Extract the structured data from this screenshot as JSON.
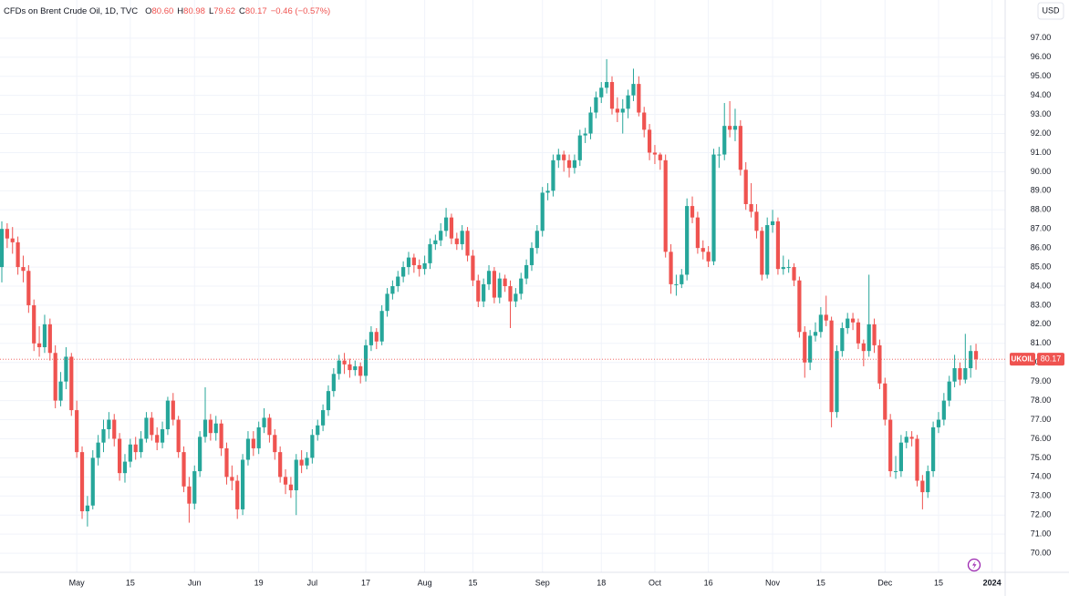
{
  "chart_data": {
    "type": "candlestick",
    "header": {
      "name": "CFDs on Brent Crude Oil, 1D, TVC",
      "ohlc": [
        {
          "key": "O",
          "value": "80.60"
        },
        {
          "key": "H",
          "value": "80.98"
        },
        {
          "key": "L",
          "value": "79.62"
        },
        {
          "key": "C",
          "value": "80.17"
        }
      ],
      "change": "−0.46 (−0.57%)"
    },
    "currency": "USD",
    "symbol": "UKOIL",
    "up_color": "#26a69a",
    "down_color": "#ef5350",
    "grid": true,
    "ylim": [
      69,
      99
    ],
    "yticks": [
      {
        "value": 70,
        "label": "70.00"
      },
      {
        "value": 71,
        "label": "71.00"
      },
      {
        "value": 72,
        "label": "72.00"
      },
      {
        "value": 73,
        "label": "73.00"
      },
      {
        "value": 74,
        "label": "74.00"
      },
      {
        "value": 75,
        "label": "75.00"
      },
      {
        "value": 76,
        "label": "76.00"
      },
      {
        "value": 77,
        "label": "77.00"
      },
      {
        "value": 78,
        "label": "78.00"
      },
      {
        "value": 79,
        "label": "79.00"
      },
      {
        "value": 80,
        "label": "80.00"
      },
      {
        "value": 81,
        "label": "81.00"
      },
      {
        "value": 82,
        "label": "82.00"
      },
      {
        "value": 83,
        "label": "83.00"
      },
      {
        "value": 84,
        "label": "84.00"
      },
      {
        "value": 85,
        "label": "85.00"
      },
      {
        "value": 86,
        "label": "86.00"
      },
      {
        "value": 87,
        "label": "87.00"
      },
      {
        "value": 88,
        "label": "88.00"
      },
      {
        "value": 89,
        "label": "89.00"
      },
      {
        "value": 90,
        "label": "90.00"
      },
      {
        "value": 91,
        "label": "91.00"
      },
      {
        "value": 92,
        "label": "92.00"
      },
      {
        "value": 93,
        "label": "93.00"
      },
      {
        "value": 94,
        "label": "94.00"
      },
      {
        "value": 95,
        "label": "95.00"
      },
      {
        "value": 96,
        "label": "96.00"
      },
      {
        "value": 97,
        "label": "97.00"
      }
    ],
    "xlim": [
      0,
      190
    ],
    "xticks": [
      {
        "value": 14,
        "label": "May"
      },
      {
        "value": 24,
        "label": "15"
      },
      {
        "value": 36,
        "label": "Jun"
      },
      {
        "value": 48,
        "label": "19"
      },
      {
        "value": 58,
        "label": "Jul"
      },
      {
        "value": 68,
        "label": "17"
      },
      {
        "value": 79,
        "label": "Aug"
      },
      {
        "value": 88,
        "label": "15"
      },
      {
        "value": 101,
        "label": "Sep"
      },
      {
        "value": 112,
        "label": "18"
      },
      {
        "value": 122,
        "label": "Oct"
      },
      {
        "value": 132,
        "label": "16"
      },
      {
        "value": 144,
        "label": "Nov"
      },
      {
        "value": 153,
        "label": "15"
      },
      {
        "value": 165,
        "label": "Dec"
      },
      {
        "value": 175,
        "label": "15"
      },
      {
        "value": 185,
        "label": "2024"
      }
    ],
    "candles": [
      [
        85.0,
        87.4,
        84.2,
        87.0
      ],
      [
        87.0,
        87.3,
        86.0,
        86.5
      ],
      [
        86.5,
        87.1,
        85.7,
        86.3
      ],
      [
        86.3,
        86.6,
        84.6,
        85.0
      ],
      [
        85.0,
        85.6,
        84.2,
        84.8
      ],
      [
        84.8,
        85.1,
        82.6,
        83.0
      ],
      [
        83.0,
        83.3,
        80.6,
        81.0
      ],
      [
        81.0,
        81.9,
        80.3,
        80.8
      ],
      [
        80.8,
        82.5,
        80.5,
        82.0
      ],
      [
        82.0,
        82.3,
        80.1,
        80.5
      ],
      [
        80.5,
        80.9,
        77.6,
        78.0
      ],
      [
        78.0,
        79.5,
        77.7,
        79.0
      ],
      [
        79.0,
        80.8,
        78.6,
        80.3
      ],
      [
        80.3,
        80.5,
        77.2,
        77.5
      ],
      [
        77.5,
        78.0,
        75.0,
        75.3
      ],
      [
        75.3,
        75.6,
        71.8,
        72.2
      ],
      [
        72.2,
        73.0,
        71.4,
        72.5
      ],
      [
        72.5,
        75.4,
        72.3,
        75.0
      ],
      [
        75.0,
        76.2,
        74.6,
        75.8
      ],
      [
        75.8,
        77.0,
        75.3,
        76.5
      ],
      [
        76.5,
        77.4,
        76.0,
        77.0
      ],
      [
        77.0,
        77.3,
        75.6,
        76.0
      ],
      [
        76.0,
        76.3,
        73.8,
        74.2
      ],
      [
        74.2,
        75.2,
        73.7,
        74.8
      ],
      [
        74.8,
        76.0,
        74.5,
        75.7
      ],
      [
        75.7,
        76.1,
        74.9,
        75.3
      ],
      [
        75.3,
        76.4,
        75.0,
        76.0
      ],
      [
        76.0,
        77.4,
        75.8,
        77.1
      ],
      [
        77.1,
        77.4,
        75.9,
        76.2
      ],
      [
        76.2,
        76.6,
        75.4,
        75.8
      ],
      [
        75.8,
        76.9,
        75.5,
        76.5
      ],
      [
        76.5,
        78.2,
        76.2,
        78.0
      ],
      [
        78.0,
        78.4,
        76.7,
        77.0
      ],
      [
        77.0,
        77.2,
        75.0,
        75.3
      ],
      [
        75.3,
        75.6,
        73.2,
        73.5
      ],
      [
        73.5,
        74.0,
        71.6,
        72.6
      ],
      [
        72.6,
        74.6,
        72.3,
        74.3
      ],
      [
        74.3,
        76.4,
        74.0,
        76.1
      ],
      [
        76.1,
        78.7,
        75.8,
        77.0
      ],
      [
        77.0,
        77.3,
        75.9,
        76.3
      ],
      [
        76.3,
        77.2,
        75.9,
        76.8
      ],
      [
        76.8,
        77.0,
        75.1,
        75.5
      ],
      [
        75.5,
        75.8,
        73.6,
        74.0
      ],
      [
        74.0,
        74.6,
        73.3,
        73.8
      ],
      [
        73.8,
        74.1,
        71.8,
        72.3
      ],
      [
        72.3,
        75.2,
        72.0,
        74.9
      ],
      [
        74.9,
        76.4,
        74.6,
        76.0
      ],
      [
        76.0,
        76.4,
        75.1,
        75.5
      ],
      [
        75.5,
        76.9,
        75.2,
        76.6
      ],
      [
        76.6,
        77.6,
        76.3,
        77.1
      ],
      [
        77.1,
        77.3,
        75.8,
        76.2
      ],
      [
        76.2,
        76.5,
        74.9,
        75.3
      ],
      [
        75.3,
        75.6,
        73.7,
        74.0
      ],
      [
        74.0,
        74.4,
        73.1,
        73.6
      ],
      [
        73.6,
        74.0,
        72.9,
        73.3
      ],
      [
        73.3,
        75.2,
        72.0,
        74.9
      ],
      [
        74.9,
        75.4,
        74.2,
        74.6
      ],
      [
        74.6,
        75.3,
        74.4,
        75.0
      ],
      [
        75.0,
        76.5,
        74.7,
        76.2
      ],
      [
        76.2,
        77.0,
        75.9,
        76.7
      ],
      [
        76.7,
        77.8,
        76.4,
        77.5
      ],
      [
        77.5,
        78.8,
        77.2,
        78.5
      ],
      [
        78.5,
        79.7,
        78.2,
        79.4
      ],
      [
        79.4,
        80.4,
        79.1,
        80.1
      ],
      [
        80.1,
        80.5,
        79.4,
        79.9
      ],
      [
        79.9,
        80.2,
        79.2,
        79.6
      ],
      [
        79.6,
        80.1,
        79.3,
        79.8
      ],
      [
        79.8,
        80.0,
        78.9,
        79.3
      ],
      [
        79.3,
        81.2,
        79.0,
        80.9
      ],
      [
        80.9,
        81.9,
        80.6,
        81.6
      ],
      [
        81.6,
        81.8,
        80.7,
        81.1
      ],
      [
        81.1,
        83.0,
        80.9,
        82.7
      ],
      [
        82.7,
        83.9,
        82.4,
        83.6
      ],
      [
        83.6,
        84.3,
        83.3,
        84.0
      ],
      [
        84.0,
        84.8,
        83.7,
        84.5
      ],
      [
        84.5,
        85.3,
        84.2,
        85.0
      ],
      [
        85.0,
        85.8,
        84.6,
        85.5
      ],
      [
        85.5,
        85.7,
        84.7,
        85.1
      ],
      [
        85.1,
        85.4,
        84.5,
        84.9
      ],
      [
        84.9,
        85.6,
        84.6,
        85.2
      ],
      [
        85.2,
        86.5,
        84.9,
        86.2
      ],
      [
        86.2,
        86.7,
        85.9,
        86.4
      ],
      [
        86.4,
        87.3,
        86.1,
        86.9
      ],
      [
        86.9,
        88.1,
        86.6,
        87.6
      ],
      [
        87.6,
        87.8,
        86.2,
        86.5
      ],
      [
        86.5,
        86.8,
        85.9,
        86.2
      ],
      [
        86.2,
        87.2,
        85.9,
        86.9
      ],
      [
        86.9,
        87.1,
        85.3,
        85.6
      ],
      [
        85.6,
        85.9,
        84.0,
        84.3
      ],
      [
        84.3,
        84.6,
        82.9,
        83.2
      ],
      [
        83.2,
        84.4,
        82.9,
        84.1
      ],
      [
        84.1,
        85.1,
        83.8,
        84.8
      ],
      [
        84.8,
        85.0,
        83.1,
        83.4
      ],
      [
        83.4,
        84.7,
        83.1,
        84.4
      ],
      [
        84.4,
        84.6,
        83.7,
        84.0
      ],
      [
        84.0,
        84.3,
        81.8,
        83.2
      ],
      [
        83.2,
        83.9,
        82.9,
        83.6
      ],
      [
        83.6,
        84.7,
        83.3,
        84.4
      ],
      [
        84.4,
        85.4,
        84.1,
        85.1
      ],
      [
        85.1,
        86.3,
        84.8,
        86.0
      ],
      [
        86.0,
        87.2,
        85.7,
        86.9
      ],
      [
        86.9,
        89.2,
        86.6,
        88.9
      ],
      [
        88.9,
        89.4,
        88.5,
        89.0
      ],
      [
        89.0,
        90.9,
        88.7,
        90.6
      ],
      [
        90.6,
        91.2,
        90.2,
        90.9
      ],
      [
        90.9,
        91.1,
        90.0,
        90.6
      ],
      [
        90.6,
        90.9,
        89.7,
        90.2
      ],
      [
        90.2,
        90.9,
        89.9,
        90.6
      ],
      [
        90.6,
        92.2,
        90.3,
        91.9
      ],
      [
        91.9,
        92.3,
        91.5,
        92.0
      ],
      [
        92.0,
        93.4,
        91.7,
        93.1
      ],
      [
        93.1,
        94.2,
        92.8,
        93.9
      ],
      [
        93.9,
        94.7,
        93.6,
        94.4
      ],
      [
        94.4,
        95.9,
        94.1,
        94.7
      ],
      [
        94.7,
        95.0,
        93.0,
        93.3
      ],
      [
        93.3,
        93.9,
        92.6,
        93.1
      ],
      [
        93.1,
        93.8,
        92.0,
        93.3
      ],
      [
        93.3,
        94.3,
        92.8,
        94.0
      ],
      [
        94.0,
        95.4,
        93.7,
        94.6
      ],
      [
        94.6,
        95.0,
        92.9,
        93.1
      ],
      [
        93.1,
        93.4,
        91.8,
        92.2
      ],
      [
        92.2,
        92.5,
        90.6,
        91.0
      ],
      [
        91.0,
        91.4,
        90.4,
        90.9
      ],
      [
        90.9,
        91.0,
        90.1,
        90.6
      ],
      [
        90.6,
        90.9,
        85.5,
        85.8
      ],
      [
        85.8,
        86.2,
        83.6,
        84.1
      ],
      [
        84.1,
        84.6,
        83.5,
        84.1
      ],
      [
        84.1,
        84.9,
        83.9,
        84.6
      ],
      [
        84.6,
        88.6,
        84.3,
        88.2
      ],
      [
        88.2,
        88.7,
        87.3,
        87.6
      ],
      [
        87.6,
        87.9,
        85.7,
        86.0
      ],
      [
        86.0,
        86.4,
        85.4,
        85.8
      ],
      [
        85.8,
        86.1,
        85.0,
        85.3
      ],
      [
        85.3,
        91.2,
        85.1,
        90.9
      ],
      [
        90.9,
        91.3,
        90.2,
        90.9
      ],
      [
        90.9,
        93.6,
        90.6,
        92.4
      ],
      [
        92.4,
        93.7,
        91.8,
        92.2
      ],
      [
        92.2,
        93.3,
        91.6,
        92.4
      ],
      [
        92.4,
        92.7,
        89.8,
        90.1
      ],
      [
        90.1,
        90.5,
        88.0,
        88.3
      ],
      [
        88.3,
        89.4,
        87.6,
        87.9
      ],
      [
        87.9,
        88.3,
        86.5,
        86.9
      ],
      [
        86.9,
        87.1,
        84.3,
        84.6
      ],
      [
        84.6,
        87.6,
        84.4,
        87.2
      ],
      [
        87.2,
        88.0,
        86.8,
        87.4
      ],
      [
        87.4,
        87.6,
        84.6,
        84.9
      ],
      [
        84.9,
        85.6,
        84.6,
        85.0
      ],
      [
        85.0,
        85.4,
        84.7,
        85.0
      ],
      [
        85.0,
        85.2,
        84.0,
        84.3
      ],
      [
        84.3,
        84.5,
        81.3,
        81.6
      ],
      [
        81.6,
        81.9,
        79.2,
        80.0
      ],
      [
        80.0,
        81.7,
        79.6,
        81.4
      ],
      [
        81.4,
        82.1,
        81.1,
        81.6
      ],
      [
        81.6,
        82.9,
        81.3,
        82.5
      ],
      [
        82.5,
        83.5,
        81.9,
        82.2
      ],
      [
        82.2,
        82.4,
        76.6,
        77.4
      ],
      [
        77.4,
        80.9,
        77.1,
        80.6
      ],
      [
        80.6,
        82.1,
        80.3,
        81.8
      ],
      [
        81.8,
        82.6,
        81.5,
        82.3
      ],
      [
        82.3,
        82.6,
        81.7,
        82.1
      ],
      [
        82.1,
        82.3,
        80.7,
        81.0
      ],
      [
        81.0,
        81.2,
        79.8,
        80.6
      ],
      [
        80.6,
        84.6,
        80.3,
        82.0
      ],
      [
        82.0,
        82.3,
        80.5,
        80.9
      ],
      [
        80.9,
        81.2,
        78.6,
        78.9
      ],
      [
        78.9,
        79.2,
        76.7,
        77.0
      ],
      [
        77.0,
        77.3,
        74.0,
        74.3
      ],
      [
        74.3,
        75.1,
        73.9,
        74.3
      ],
      [
        74.3,
        76.2,
        74.0,
        75.8
      ],
      [
        75.8,
        76.4,
        75.5,
        76.1
      ],
      [
        76.1,
        76.4,
        75.6,
        76.0
      ],
      [
        76.0,
        76.2,
        73.5,
        73.8
      ],
      [
        73.8,
        74.1,
        72.3,
        73.2
      ],
      [
        73.2,
        74.6,
        72.9,
        74.3
      ],
      [
        74.3,
        76.9,
        74.0,
        76.6
      ],
      [
        76.6,
        77.4,
        76.3,
        77.0
      ],
      [
        77.0,
        78.4,
        76.7,
        78.0
      ],
      [
        78.0,
        79.3,
        77.7,
        79.0
      ],
      [
        79.0,
        80.4,
        78.7,
        79.7
      ],
      [
        79.7,
        80.0,
        78.8,
        79.1
      ],
      [
        79.1,
        81.5,
        78.9,
        79.7
      ],
      [
        79.7,
        80.9,
        79.2,
        80.6
      ],
      [
        80.6,
        80.98,
        79.62,
        80.17
      ]
    ]
  }
}
